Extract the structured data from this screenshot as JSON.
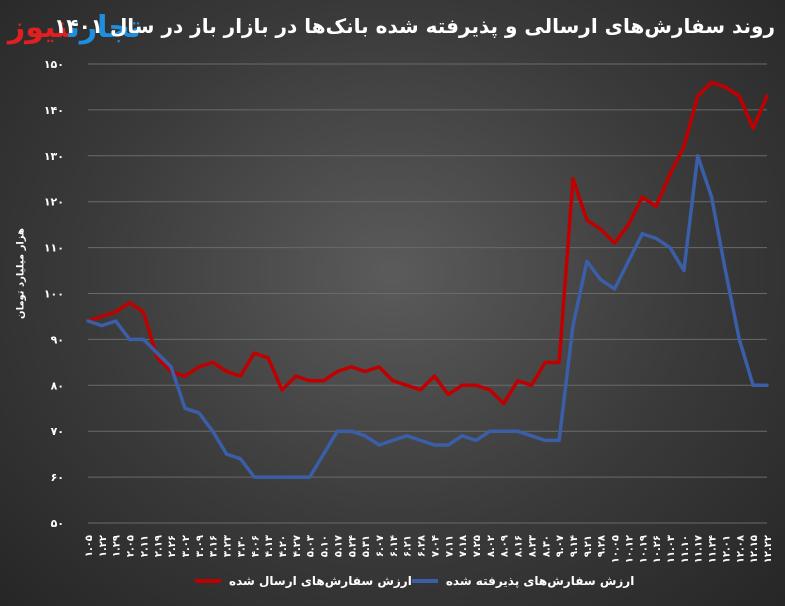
{
  "logo": {
    "part_a": "تجارت",
    "part_b": "نیوز"
  },
  "chart_data": {
    "type": "line",
    "title": "روند سفارش‌های ارسالی و پذیرفته شده بانک‌ها در بازار باز در سال ۱۴۰۱",
    "xlabel": "",
    "ylabel": "هزار میلیارد تومان",
    "ylim": [
      50,
      150
    ],
    "yticks": [
      "۵۰",
      "۶۰",
      "۷۰",
      "۸۰",
      "۹۰",
      "۱۰۰",
      "۱۱۰",
      "۱۲۰",
      "۱۳۰",
      "۱۴۰",
      "۱۵۰"
    ],
    "grid": true,
    "legend_position": "bottom",
    "categories": [
      "۱.۰۵",
      "۱.۲۲",
      "۱.۲۹",
      "۲.۰۵",
      "۲.۱۱",
      "۲.۱۹",
      "۲.۲۶",
      "۳.۰۲",
      "۳.۰۹",
      "۳.۱۶",
      "۳.۲۳",
      "۳.۳۰",
      "۴.۰۶",
      "۴.۱۳",
      "۴.۲۰",
      "۴.۲۷",
      "۵.۰۳",
      "۵.۱۰",
      "۵.۱۷",
      "۵.۲۴",
      "۵.۳۱",
      "۶.۰۷",
      "۶.۱۴",
      "۶.۲۱",
      "۶.۲۸",
      "۷.۰۴",
      "۷.۱۱",
      "۷.۱۸",
      "۷.۲۵",
      "۸.۰۲",
      "۸.۰۹",
      "۸.۱۶",
      "۸.۲۳",
      "۸.۳۰",
      "۹.۰۷",
      "۹.۱۴",
      "۹.۲۱",
      "۹.۲۸",
      "۱۰.۰۵",
      "۱۰.۱۲",
      "۱۰.۱۹",
      "۱۰.۲۶",
      "۱۱.۰۳",
      "۱۱.۱۰",
      "۱۱.۱۷",
      "۱۱.۲۴",
      "۱۲.۰۱",
      "۱۲.۰۸",
      "۱۲.۱۵",
      "۱۲.۲۲"
    ],
    "series": [
      {
        "name": "ارزش سفارش‌های ارسال شده",
        "color": "#c00000",
        "values": [
          94,
          95,
          96,
          98,
          96,
          86,
          83,
          82,
          84,
          85,
          83,
          82,
          87,
          86,
          79,
          82,
          81,
          81,
          83,
          84,
          83,
          84,
          81,
          80,
          79,
          82,
          78,
          80,
          80,
          79,
          76,
          81,
          80,
          85,
          85,
          125,
          116,
          114,
          111,
          115,
          121,
          119,
          126,
          132,
          143,
          146,
          145,
          143,
          136,
          143
        ]
      },
      {
        "name": "ارزش سفارش‌های پذیرفته شده",
        "color": "#3a5ea8",
        "values": [
          94,
          93,
          94,
          90,
          90,
          87,
          84,
          75,
          74,
          70,
          65,
          64,
          60,
          60,
          60,
          60,
          60,
          65,
          70,
          70,
          69,
          67,
          68,
          69,
          68,
          67,
          67,
          69,
          68,
          70,
          70,
          70,
          69,
          68,
          68,
          93,
          107,
          103,
          101,
          107,
          113,
          112,
          110,
          105,
          130,
          121,
          105,
          90,
          80,
          80
        ]
      }
    ]
  }
}
